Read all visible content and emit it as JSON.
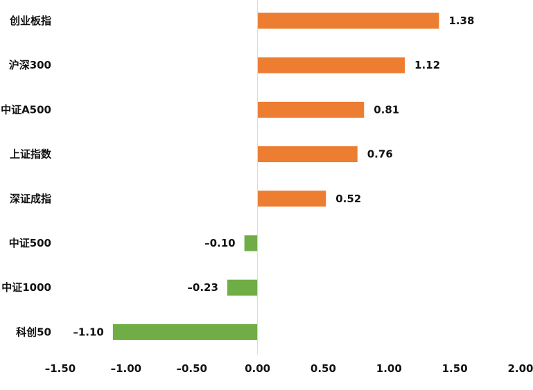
{
  "chart_data": {
    "type": "bar",
    "orientation": "horizontal",
    "title": "",
    "xlabel": "",
    "ylabel": "",
    "categories": [
      "创业板指",
      "沪深300",
      "中证A500",
      "上证指数",
      "深证成指",
      "中证500",
      "中证1000",
      "科创50"
    ],
    "values": [
      1.38,
      1.12,
      0.81,
      0.76,
      0.52,
      -0.1,
      -0.23,
      -1.1
    ],
    "value_labels": [
      "1.38",
      "1.12",
      "0.81",
      "0.76",
      "0.52",
      "–0.10",
      "–0.23",
      "–1.10"
    ],
    "xlim": [
      -1.5,
      2.0
    ],
    "x_ticks": [
      -1.5,
      -1.0,
      -0.5,
      0.0,
      0.5,
      1.0,
      1.5,
      2.0
    ],
    "x_tick_labels": [
      "–1.50",
      "–1.00",
      "–0.50",
      "0.00",
      "0.50",
      "1.00",
      "1.50",
      "2.00"
    ],
    "grid": false,
    "legend": "none",
    "colors": {
      "positive": "#ED7D31",
      "negative": "#70AD47",
      "axis": "#d9d9d9"
    }
  }
}
